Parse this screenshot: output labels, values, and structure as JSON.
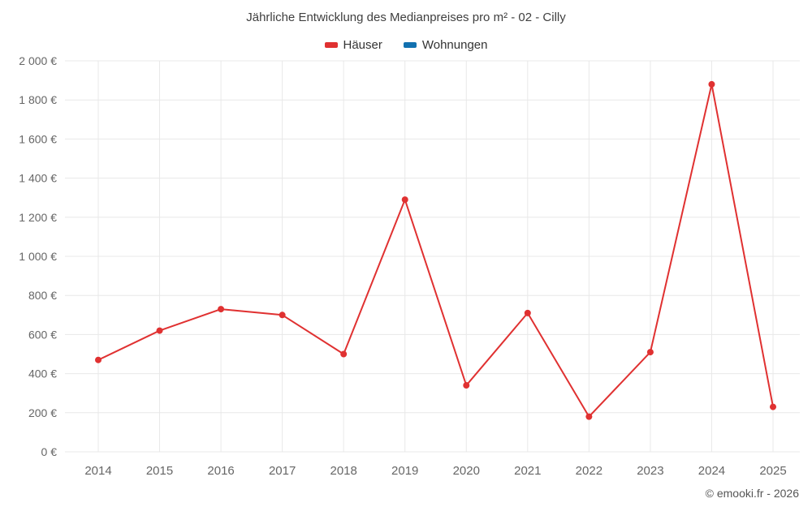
{
  "title": "Jährliche Entwicklung des Medianpreises pro m² - 02 - Cilly",
  "legend": [
    {
      "label": "Häuser",
      "color": "#e03131"
    },
    {
      "label": "Wohnungen",
      "color": "#1271b0"
    }
  ],
  "footer": "© emooki.fr - 2026",
  "colors": {
    "grid": "#e8e8e8",
    "tick_text": "#666666"
  },
  "chart_data": {
    "type": "line",
    "title": "Jährliche Entwicklung des Medianpreises pro m² - 02 - Cilly",
    "categories": [
      "2014",
      "2015",
      "2016",
      "2017",
      "2018",
      "2019",
      "2020",
      "2021",
      "2022",
      "2023",
      "2024",
      "2025"
    ],
    "series": [
      {
        "name": "Häuser",
        "color": "#e03131",
        "values": [
          470,
          620,
          730,
          700,
          500,
          1290,
          340,
          710,
          180,
          510,
          1880,
          230
        ]
      },
      {
        "name": "Wohnungen",
        "color": "#1271b0",
        "values": []
      }
    ],
    "xlabel": "",
    "ylabel": "",
    "ylim": [
      0,
      2000
    ],
    "ytick_step": 200,
    "ytick_labels": [
      "0 €",
      "200 €",
      "400 €",
      "600 €",
      "800 €",
      "1 000 €",
      "1 200 €",
      "1 400 €",
      "1 600 €",
      "1 800 €",
      "2 000 €"
    ],
    "grid": true,
    "legend_position": "top",
    "marker": "circle"
  }
}
